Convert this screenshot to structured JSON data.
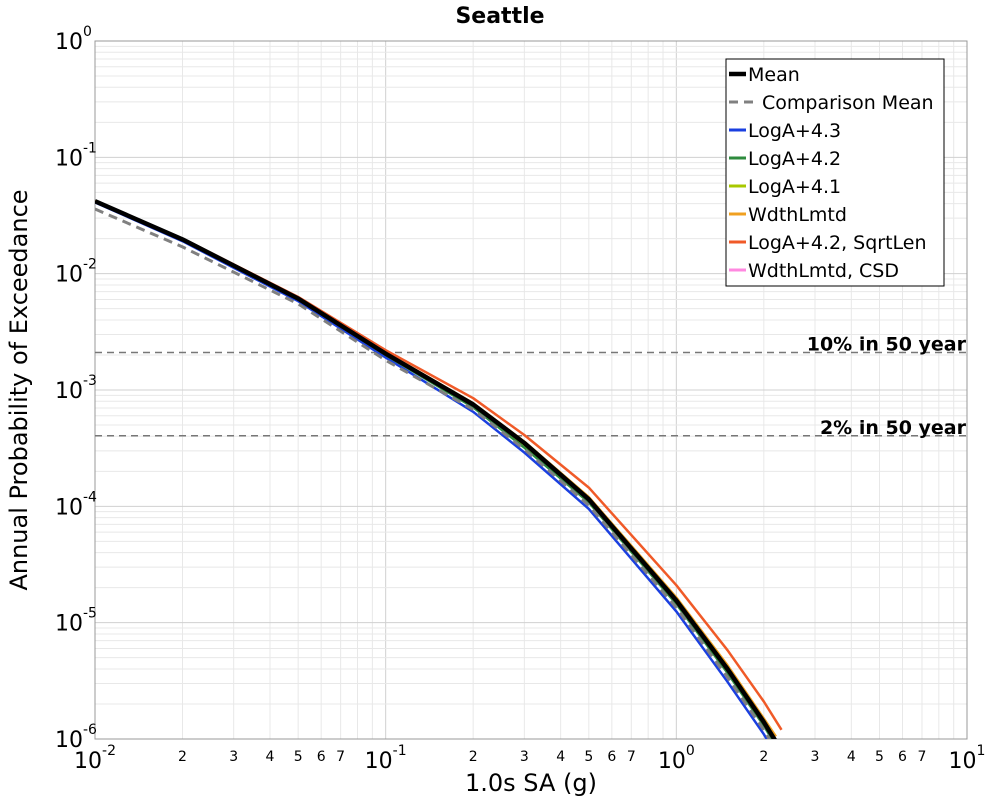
{
  "chart_data": {
    "type": "line",
    "title": "Seattle",
    "xlabel": "1.0s SA (g)",
    "ylabel": "Annual Probability of Exceedance",
    "xscale": "log",
    "yscale": "log",
    "xlim": [
      0.01,
      10
    ],
    "ylim": [
      1e-06,
      1
    ],
    "grid": true,
    "legend_position": "top-right",
    "x_major_ticks": [
      {
        "value": 0.01,
        "base": "10",
        "exp": "-2"
      },
      {
        "value": 0.1,
        "base": "10",
        "exp": "-1"
      },
      {
        "value": 1,
        "base": "10",
        "exp": "0"
      },
      {
        "value": 10,
        "base": "10",
        "exp": "1"
      }
    ],
    "y_major_ticks": [
      {
        "value": 1,
        "base": "10",
        "exp": "0"
      },
      {
        "value": 0.1,
        "base": "10",
        "exp": "-1"
      },
      {
        "value": 0.01,
        "base": "10",
        "exp": "-2"
      },
      {
        "value": 0.001,
        "base": "10",
        "exp": "-3"
      },
      {
        "value": 0.0001,
        "base": "10",
        "exp": "-4"
      },
      {
        "value": 1e-05,
        "base": "10",
        "exp": "-5"
      },
      {
        "value": 1e-06,
        "base": "10",
        "exp": "-6"
      }
    ],
    "x_minor_tick_labels": [
      "2",
      "3",
      "4",
      "5",
      "6",
      "7"
    ],
    "reference_lines": [
      {
        "label": "10% in 50 year",
        "y": 0.0021
      },
      {
        "label": "2% in 50 year",
        "y": 0.000404
      }
    ],
    "series": [
      {
        "name": "LogA+4.3",
        "color": "#1a3fe0",
        "style": "solid",
        "x": [
          0.01,
          0.02,
          0.05,
          0.1,
          0.2,
          0.3,
          0.5,
          1,
          1.5,
          2,
          2.2
        ],
        "y": [
          0.041,
          0.019,
          0.0058,
          0.0019,
          0.00065,
          0.00029,
          9.5e-05,
          1.25e-05,
          3.1e-06,
          1.1e-06,
          7.4e-07
        ]
      },
      {
        "name": "LogA+4.2",
        "color": "#2e8b3e",
        "style": "solid",
        "x": [
          0.01,
          0.02,
          0.05,
          0.1,
          0.2,
          0.3,
          0.5,
          1,
          1.5,
          2,
          2.2
        ],
        "y": [
          0.042,
          0.0195,
          0.006,
          0.002,
          0.00071,
          0.00032,
          0.000108,
          1.45e-05,
          3.7e-06,
          1.3e-06,
          8.8e-07
        ]
      },
      {
        "name": "LogA+4.1",
        "color": "#a8c800",
        "style": "solid",
        "x": [
          0.01,
          0.02,
          0.05,
          0.1,
          0.2,
          0.3,
          0.5,
          1,
          1.5,
          2,
          2.2
        ],
        "y": [
          0.042,
          0.0197,
          0.0061,
          0.00205,
          0.00074,
          0.00034,
          0.000115,
          1.55e-05,
          4e-06,
          1.4e-06,
          9.5e-07
        ]
      },
      {
        "name": "WdthLmtd",
        "color": "#f0a020",
        "style": "solid",
        "x": [
          0.01,
          0.02,
          0.05,
          0.1,
          0.2,
          0.3,
          0.5,
          1,
          1.5,
          2,
          2.2
        ],
        "y": [
          0.042,
          0.0198,
          0.0062,
          0.0021,
          0.00077,
          0.00036,
          0.00012,
          1.65e-05,
          4.3e-06,
          1.5e-06,
          1.05e-06
        ]
      },
      {
        "name": "LogA+4.2, SqrtLen",
        "color": "#f05a28",
        "style": "solid",
        "x": [
          0.01,
          0.02,
          0.05,
          0.1,
          0.2,
          0.3,
          0.5,
          1,
          1.5,
          2,
          2.3
        ],
        "y": [
          0.042,
          0.02,
          0.0063,
          0.0022,
          0.00085,
          0.00041,
          0.000145,
          2.1e-05,
          5.8e-06,
          2.1e-06,
          1.2e-06
        ]
      },
      {
        "name": "WdthLmtd, CSD",
        "color": "#ff88e0",
        "style": "solid",
        "x": [],
        "y": []
      },
      {
        "name": "Comparison Mean",
        "color": "#808080",
        "style": "dashed",
        "x": [
          0.01,
          0.02,
          0.05,
          0.1,
          0.2,
          0.3,
          0.5,
          1,
          1.5,
          2,
          2.2
        ],
        "y": [
          0.036,
          0.017,
          0.0055,
          0.0018,
          0.00068,
          0.00031,
          0.000102,
          1.35e-05,
          3.4e-06,
          1.2e-06,
          8e-07
        ]
      },
      {
        "name": "Mean",
        "color": "#000000",
        "style": "solid-bold",
        "x": [
          0.01,
          0.02,
          0.05,
          0.1,
          0.2,
          0.3,
          0.5,
          1,
          1.5,
          2,
          2.2
        ],
        "y": [
          0.042,
          0.0197,
          0.0061,
          0.00205,
          0.00075,
          0.00035,
          0.000115,
          1.55e-05,
          4e-06,
          1.4e-06,
          9.5e-07
        ]
      }
    ],
    "legend_order": [
      "Mean",
      "Comparison Mean",
      "LogA+4.3",
      "LogA+4.2",
      "LogA+4.1",
      "WdthLmtd",
      "LogA+4.2, SqrtLen",
      "WdthLmtd, CSD"
    ]
  }
}
